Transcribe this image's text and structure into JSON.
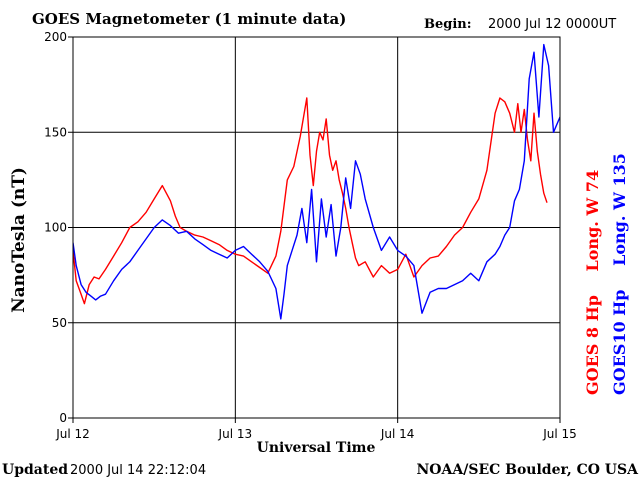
{
  "header": {
    "title": "GOES Magnetometer (1 minute data)",
    "begin_label": "Begin:",
    "begin_value": "2000 Jul 12 0000UT"
  },
  "footer": {
    "updated_label": "Updated",
    "updated_value": "2000 Jul 14 22:12:04",
    "credit": "NOAA/SEC Boulder, CO USA"
  },
  "colors": {
    "goes8": "#ff0000",
    "goes10": "#0000ff",
    "grid": "#000000",
    "background": "#ffffff"
  },
  "chart_data": {
    "type": "line",
    "title": "GOES Magnetometer (1 minute data)",
    "xlabel": "Universal Time",
    "ylabel": "NanoTesla (nT)",
    "x_unit": "days since 2000 Jul 12 00:00 UT",
    "xlim": [
      0,
      3
    ],
    "ylim": [
      0,
      200
    ],
    "x_tick_values": [
      0,
      1,
      2,
      3
    ],
    "x_tick_labels": [
      "Jul 12",
      "Jul 13",
      "Jul 14",
      "Jul 15"
    ],
    "y_ticks": [
      0,
      50,
      100,
      150,
      200
    ],
    "grid": true,
    "legend_placement": "right (vertical text)",
    "series": [
      {
        "name": "GOES 8 Hp  Long. W 74",
        "short": "GOES 8 Hp",
        "long": "Long. W 74",
        "color": "#ff0000",
        "x": [
          0,
          0.02,
          0.05,
          0.07,
          0.1,
          0.13,
          0.16,
          0.2,
          0.25,
          0.3,
          0.35,
          0.4,
          0.45,
          0.5,
          0.55,
          0.6,
          0.63,
          0.66,
          0.7,
          0.75,
          0.8,
          0.85,
          0.9,
          0.95,
          1.0,
          1.05,
          1.1,
          1.15,
          1.2,
          1.25,
          1.28,
          1.32,
          1.36,
          1.4,
          1.44,
          1.46,
          1.48,
          1.5,
          1.52,
          1.54,
          1.56,
          1.58,
          1.6,
          1.62,
          1.64,
          1.66,
          1.68,
          1.7,
          1.72,
          1.74,
          1.76,
          1.8,
          1.85,
          1.9,
          1.95,
          2.0,
          2.05,
          2.1,
          2.15,
          2.2,
          2.25,
          2.3,
          2.35,
          2.4,
          2.45,
          2.5,
          2.55,
          2.6,
          2.63,
          2.66,
          2.69,
          2.72,
          2.74,
          2.76,
          2.78,
          2.8,
          2.82,
          2.84,
          2.86,
          2.88,
          2.9,
          2.92
        ],
        "values": [
          88,
          72,
          65,
          60,
          70,
          74,
          73,
          78,
          85,
          92,
          100,
          103,
          108,
          115,
          122,
          114,
          106,
          100,
          98,
          96,
          95,
          93,
          91,
          88,
          86,
          85,
          82,
          79,
          76,
          85,
          98,
          125,
          132,
          148,
          168,
          138,
          122,
          140,
          150,
          146,
          157,
          138,
          130,
          135,
          125,
          118,
          110,
          100,
          92,
          84,
          80,
          82,
          74,
          80,
          76,
          78,
          86,
          74,
          80,
          84,
          85,
          90,
          96,
          100,
          108,
          115,
          130,
          160,
          168,
          166,
          160,
          150,
          165,
          150,
          162,
          146,
          135,
          160,
          140,
          128,
          118,
          113
        ]
      },
      {
        "name": "GOES10 Hp  Long. W 135",
        "short": "GOES10 Hp",
        "long": "Long. W 135",
        "color": "#0000ff",
        "x": [
          0,
          0.02,
          0.05,
          0.08,
          0.11,
          0.14,
          0.17,
          0.2,
          0.25,
          0.3,
          0.35,
          0.4,
          0.45,
          0.5,
          0.55,
          0.6,
          0.65,
          0.7,
          0.75,
          0.8,
          0.85,
          0.9,
          0.95,
          1.0,
          1.05,
          1.1,
          1.15,
          1.2,
          1.25,
          1.28,
          1.3,
          1.32,
          1.35,
          1.38,
          1.41,
          1.44,
          1.47,
          1.5,
          1.53,
          1.56,
          1.59,
          1.62,
          1.65,
          1.68,
          1.71,
          1.74,
          1.77,
          1.8,
          1.85,
          1.9,
          1.95,
          2.0,
          2.05,
          2.1,
          2.15,
          2.2,
          2.25,
          2.3,
          2.35,
          2.4,
          2.45,
          2.5,
          2.55,
          2.6,
          2.63,
          2.66,
          2.69,
          2.72,
          2.75,
          2.78,
          2.81,
          2.84,
          2.87,
          2.9,
          2.93,
          2.96,
          3.0
        ],
        "values": [
          92,
          80,
          70,
          66,
          64,
          62,
          64,
          65,
          72,
          78,
          82,
          88,
          94,
          100,
          104,
          101,
          97,
          98,
          94,
          91,
          88,
          86,
          84,
          88,
          90,
          86,
          82,
          77,
          68,
          52,
          65,
          80,
          88,
          96,
          110,
          92,
          120,
          82,
          115,
          95,
          112,
          85,
          100,
          126,
          110,
          135,
          128,
          115,
          100,
          88,
          95,
          88,
          85,
          80,
          55,
          66,
          68,
          68,
          70,
          72,
          76,
          72,
          82,
          86,
          90,
          96,
          100,
          114,
          120,
          135,
          178,
          192,
          158,
          196,
          185,
          150,
          158
        ]
      }
    ]
  }
}
